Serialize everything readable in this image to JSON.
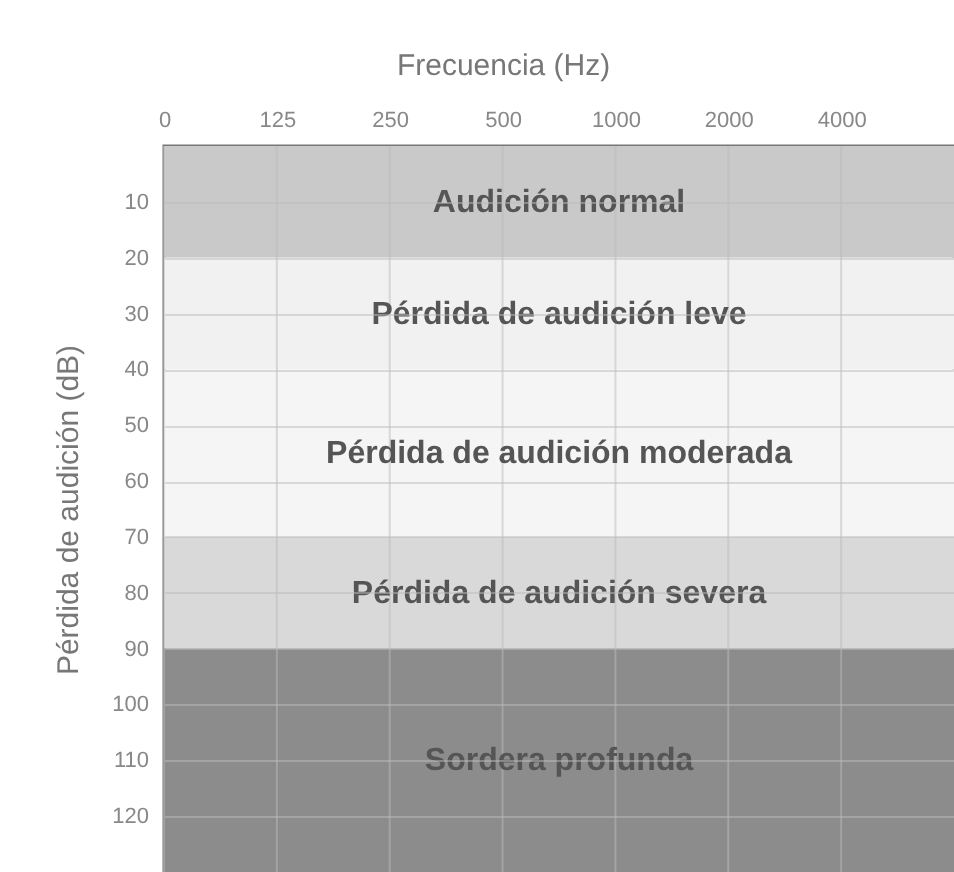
{
  "chart_data": {
    "type": "line",
    "xlabel": "Frecuencia (Hz)",
    "ylabel": "Pérdida de audición (dB)",
    "categories": [
      "0",
      "125",
      "250",
      "500",
      "1000",
      "2000",
      "4000"
    ],
    "ylim": [
      130,
      0
    ],
    "yticks": [
      10,
      20,
      30,
      40,
      50,
      60,
      70,
      80,
      90,
      100,
      110,
      120
    ],
    "grid": true,
    "bands": [
      {
        "axis": "y",
        "from": 0,
        "to": 20,
        "label": "Audición normal",
        "color": "#c9c9c9"
      },
      {
        "axis": "y",
        "from": 20,
        "to": 40,
        "label": "Pérdida de audición leve",
        "color": "#f1f1f1"
      },
      {
        "axis": "y",
        "from": 40,
        "to": 70,
        "label": "Pérdida de audición moderada",
        "color": "#f5f5f5"
      },
      {
        "axis": "y",
        "from": 70,
        "to": 90,
        "label": "Pérdida de audición severa",
        "color": "#d9d9d9"
      },
      {
        "axis": "y",
        "from": 90,
        "to": 130,
        "label": "Sordera profunda",
        "color": "#8c8c8c"
      }
    ]
  }
}
